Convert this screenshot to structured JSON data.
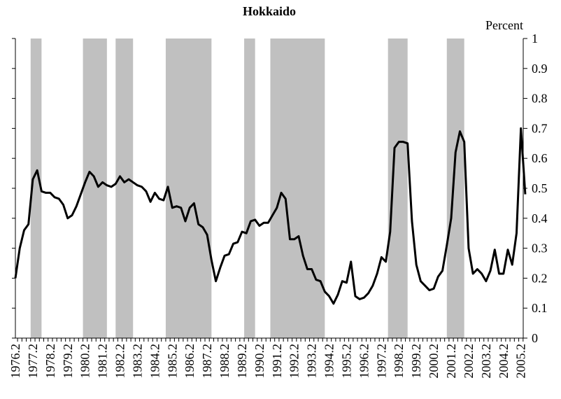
{
  "chart_data": {
    "type": "line",
    "title": "Hokkaido",
    "y_axis_label": "Percent",
    "categories": [
      "1976.2",
      null,
      null,
      null,
      "1977.2",
      null,
      null,
      null,
      "1978.2",
      null,
      null,
      null,
      "1979.2",
      null,
      null,
      null,
      "1980.2",
      null,
      null,
      null,
      "1981.2",
      null,
      null,
      null,
      "1982.2",
      null,
      null,
      null,
      "1983.2",
      null,
      null,
      null,
      "1984.2",
      null,
      null,
      null,
      "1985.2",
      null,
      null,
      null,
      "1986.2",
      null,
      null,
      null,
      "1987.2",
      null,
      null,
      null,
      "1988.2",
      null,
      null,
      null,
      "1989.2",
      null,
      null,
      null,
      "1990.2",
      null,
      null,
      null,
      "1991.2",
      null,
      null,
      null,
      "1992.2",
      null,
      null,
      null,
      "1993.2",
      null,
      null,
      null,
      "1994.2",
      null,
      null,
      null,
      "1995.2",
      null,
      null,
      null,
      "1996.2",
      null,
      null,
      null,
      "1997.2",
      null,
      null,
      null,
      "1998.2",
      null,
      null,
      null,
      "1999.2",
      null,
      null,
      null,
      "2000.2",
      null,
      null,
      null,
      "2001.2",
      null,
      null,
      null,
      "2002.2",
      null,
      null,
      null,
      "2003.2",
      null,
      null,
      null,
      "2004.2",
      null,
      null,
      null,
      "2005.2",
      null
    ],
    "series": [
      {
        "color": "#000000",
        "values": [
          0.2,
          0.3,
          0.36,
          0.38,
          0.53,
          0.56,
          0.49,
          0.485,
          0.485,
          0.47,
          0.465,
          0.445,
          0.4,
          0.41,
          0.44,
          0.48,
          0.52,
          0.555,
          0.54,
          0.505,
          0.52,
          0.51,
          0.505,
          0.515,
          0.54,
          0.52,
          0.53,
          0.52,
          0.51,
          0.505,
          0.49,
          0.455,
          0.485,
          0.465,
          0.46,
          0.505,
          0.435,
          0.44,
          0.435,
          0.39,
          0.435,
          0.45,
          0.38,
          0.37,
          0.345,
          0.26,
          0.19,
          0.235,
          0.275,
          0.28,
          0.315,
          0.32,
          0.355,
          0.35,
          0.39,
          0.395,
          0.375,
          0.385,
          0.385,
          0.41,
          0.435,
          0.485,
          0.465,
          0.33,
          0.33,
          0.34,
          0.275,
          0.23,
          0.23,
          0.195,
          0.19,
          0.155,
          0.14,
          0.115,
          0.145,
          0.19,
          0.185,
          0.255,
          0.14,
          0.13,
          0.135,
          0.15,
          0.175,
          0.215,
          0.27,
          0.255,
          0.355,
          0.635,
          0.655,
          0.655,
          0.65,
          0.39,
          0.245,
          0.19,
          0.175,
          0.16,
          0.165,
          0.205,
          0.225,
          0.31,
          0.4,
          0.62,
          0.69,
          0.655,
          0.3,
          0.215,
          0.23,
          0.215,
          0.19,
          0.225,
          0.295,
          0.215,
          0.215,
          0.295,
          0.245,
          0.35,
          0.7,
          0.48
        ]
      }
    ],
    "shaded_periods": [
      {
        "from": 3.5,
        "to": 6
      },
      {
        "from": 15.5,
        "to": 21
      },
      {
        "from": 23,
        "to": 27
      },
      {
        "from": 34.5,
        "to": 45
      },
      {
        "from": 52.5,
        "to": 55
      },
      {
        "from": 58.5,
        "to": 71
      },
      {
        "from": 85.5,
        "to": 90
      },
      {
        "from": 99,
        "to": 103
      }
    ],
    "shade_color": "#c0c0c0",
    "ylim": [
      0,
      1
    ],
    "yticks": [
      0,
      0.1,
      0.2,
      0.3,
      0.4,
      0.5,
      0.6,
      0.7,
      0.8,
      0.9,
      1
    ]
  }
}
